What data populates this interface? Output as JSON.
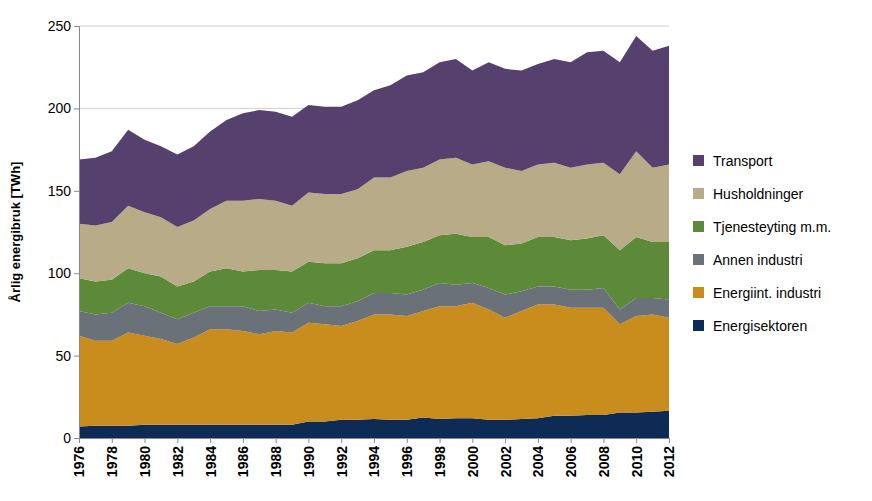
{
  "chart_data": {
    "type": "area",
    "stacked": true,
    "grid": true,
    "legend": "right",
    "y_label": "Årlig energibruk [TWh]",
    "x": [
      1976,
      1977,
      1978,
      1979,
      1980,
      1981,
      1982,
      1983,
      1984,
      1985,
      1986,
      1987,
      1988,
      1989,
      1990,
      1991,
      1992,
      1993,
      1994,
      1995,
      1996,
      1997,
      1998,
      1999,
      2000,
      2001,
      2002,
      2003,
      2004,
      2005,
      2006,
      2007,
      2008,
      2009,
      2010,
      2011,
      2012
    ],
    "xlim": [
      1976,
      2012
    ],
    "xticks": [
      1976,
      1978,
      1980,
      1982,
      1984,
      1986,
      1988,
      1990,
      1992,
      1994,
      1996,
      1998,
      2000,
      2002,
      2004,
      2006,
      2008,
      2010,
      2012
    ],
    "ylim": [
      0,
      250
    ],
    "yticks": [
      0,
      50,
      100,
      150,
      200,
      250
    ],
    "series": [
      {
        "name": "Energisektoren",
        "color": "#0e2b55",
        "values": [
          7,
          7.5,
          7.5,
          7.5,
          8,
          8,
          8,
          8,
          8,
          8,
          8,
          8,
          8,
          8,
          10,
          10,
          11,
          11,
          11.5,
          11,
          11,
          12.5,
          11.5,
          12,
          12,
          11,
          11,
          11.5,
          12,
          13.5,
          13.5,
          14,
          14,
          15.5,
          15.5,
          16,
          16.5
        ]
      },
      {
        "name": "Energiint. industri",
        "color": "#c98d1e",
        "values": [
          55,
          51.5,
          51.5,
          56.5,
          54,
          52,
          49,
          53,
          58,
          58,
          57,
          55,
          57,
          56,
          60,
          59,
          57,
          60,
          63.5,
          64,
          63,
          64.5,
          68.5,
          68,
          70,
          67,
          62,
          65.5,
          69,
          67.5,
          65.5,
          65,
          65,
          53.5,
          58.5,
          59,
          56.5
        ]
      },
      {
        "name": "Annen industri",
        "color": "#6b7179",
        "values": [
          15,
          16,
          17,
          18,
          18,
          16,
          15,
          15,
          14,
          14,
          15,
          14,
          13,
          12,
          12,
          11,
          12,
          12,
          13,
          13,
          13,
          13,
          14,
          13,
          12,
          13,
          14,
          12,
          11,
          11,
          11,
          11,
          12,
          9,
          11,
          10,
          11
        ]
      },
      {
        "name": "Tjenesteyting m.m.",
        "color": "#5c8a38",
        "values": [
          20,
          20,
          20,
          21,
          20,
          22,
          20,
          19,
          21,
          23,
          21,
          25,
          24,
          25,
          25,
          26,
          26,
          26,
          26,
          26,
          29,
          29,
          29,
          31,
          28,
          31,
          30,
          29,
          30,
          30,
          30,
          31,
          32,
          36,
          37,
          34,
          35
        ]
      },
      {
        "name": "Husholdninger",
        "color": "#b7ab88",
        "values": [
          33,
          34,
          35,
          38,
          37,
          36,
          36,
          37,
          38,
          41,
          43,
          43,
          42,
          40,
          42,
          42,
          42,
          42,
          44,
          44,
          46,
          45,
          46,
          46,
          44,
          46,
          47,
          44,
          44,
          45,
          44,
          45,
          44,
          46,
          52,
          45,
          47
        ]
      },
      {
        "name": "Transport",
        "color": "#56416e",
        "values": [
          39,
          41,
          43,
          46,
          44,
          43,
          44,
          45,
          47,
          49,
          53,
          54,
          54,
          54,
          53,
          53,
          53,
          54,
          53,
          56,
          58,
          58,
          59,
          60,
          57,
          60,
          60,
          61,
          61,
          63,
          64,
          68,
          68,
          68,
          70,
          71,
          72
        ]
      }
    ]
  }
}
